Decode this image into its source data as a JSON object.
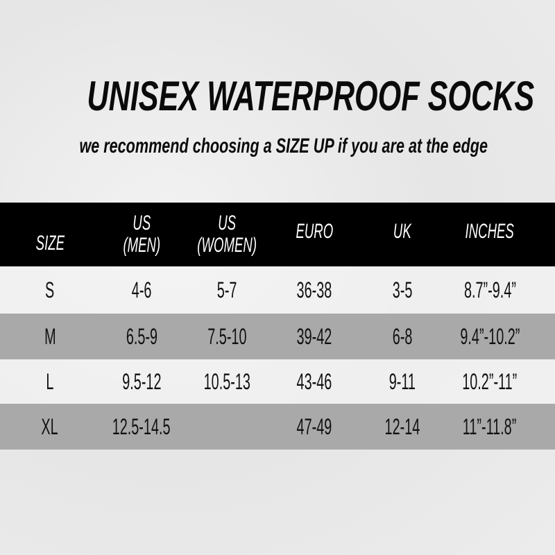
{
  "title": "UNISEX WATERPROOF SOCKS",
  "subtitle": "we recommend choosing a SIZE UP if you are at the edge",
  "table": {
    "headers": [
      [
        "SIZE"
      ],
      [
        "US",
        "(MEN)"
      ],
      [
        "US",
        "(WOMEN)"
      ],
      [
        "EURO"
      ],
      [
        "UK"
      ],
      [
        "INCHES"
      ]
    ],
    "rows": [
      [
        "S",
        "4-6",
        "5-7",
        "36-38",
        "3-5",
        "8.7”-9.4”"
      ],
      [
        "M",
        "6.5-9",
        "7.5-10",
        "39-42",
        "6-8",
        "9.4”-10.2”"
      ],
      [
        "L",
        "9.5-12",
        "10.5-13",
        "43-46",
        "9-11",
        "10.2”-11”"
      ],
      [
        "XL",
        "12.5-14.5",
        "",
        "47-49",
        "12-14",
        "11”-11.8”"
      ]
    ]
  },
  "colors": {
    "header_bg": "#000000",
    "alt_row": "#a9a9a9",
    "background": "#ebebeb"
  }
}
